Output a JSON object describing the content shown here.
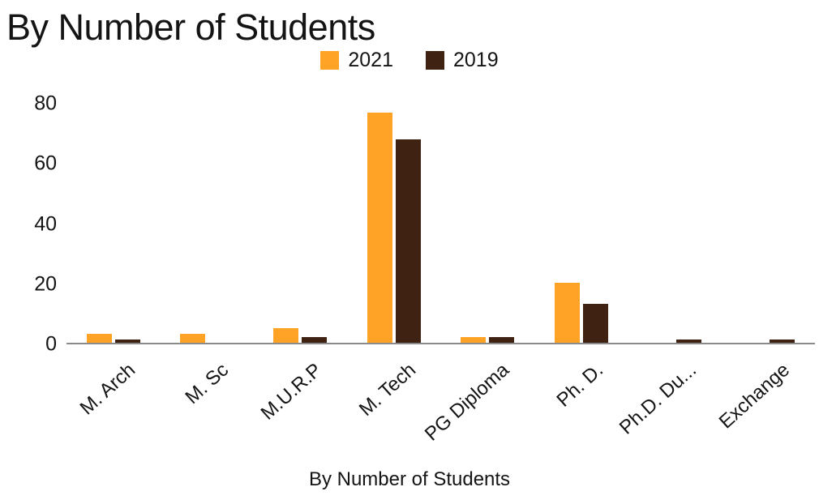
{
  "chart_data": {
    "type": "bar",
    "title": "By Number of Students",
    "xlabel": "By Number of Students",
    "ylabel": "",
    "categories": [
      "M. Arch",
      "M. Sc",
      "M.U.R.P",
      "M. Tech",
      "PG Diploma",
      "Ph. D.",
      "Ph.D. Du...",
      "Exchange"
    ],
    "series": [
      {
        "name": "2021",
        "color": "#FFA327",
        "values": [
          3,
          3,
          5,
          77,
          2,
          20,
          0,
          0
        ]
      },
      {
        "name": "2019",
        "color": "#3F2212",
        "values": [
          1,
          0,
          2,
          68,
          2,
          13,
          1,
          1
        ]
      }
    ],
    "ylim": [
      0,
      80
    ],
    "yticks": [
      0,
      20,
      40,
      60,
      80
    ],
    "grid": false,
    "legend_position": "top-center"
  },
  "colors": {
    "series_2021": "#FFA327",
    "series_2019": "#3F2212",
    "axis_line": "#8a8a8a",
    "text": "#141414",
    "background": "#ffffff"
  }
}
